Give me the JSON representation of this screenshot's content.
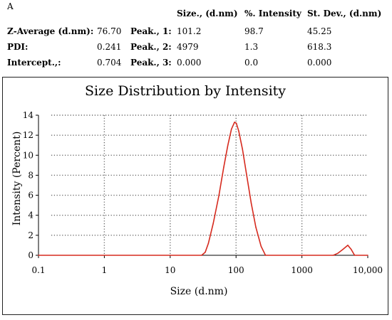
{
  "panel_label": "A",
  "summary": {
    "headers": [
      "Size., (d.nm)",
      "%. Intensity",
      "St. Dev., (d.nm)"
    ],
    "rows": [
      {
        "label": "Z-Average (d.nm):",
        "value": "76.70",
        "peak": "Peak., 1:",
        "size": "101.2",
        "intensity": "98.7",
        "stdev": "45.25"
      },
      {
        "label": "PDI:",
        "value": "0.241",
        "peak": "Peak., 2:",
        "size": "4979",
        "intensity": "1.3",
        "stdev": "618.3"
      },
      {
        "label": "Intercept.,:",
        "value": "0.704",
        "peak": "Peak., 3:",
        "size": "0.000",
        "intensity": "0.0",
        "stdev": "0.000"
      }
    ]
  },
  "chart_data": {
    "type": "line",
    "title": "Size Distribution by Intensity",
    "xlabel": "Size (d.nm)",
    "ylabel": "Intensity (Percent)",
    "xscale": "log",
    "xlim": [
      0.1,
      10000
    ],
    "ylim": [
      0,
      14
    ],
    "x_ticks": [
      0.1,
      1,
      10,
      100,
      1000,
      10000
    ],
    "x_tick_labels": [
      "0.1",
      "1",
      "10",
      "100",
      "1000",
      "10,000"
    ],
    "y_ticks": [
      0,
      2,
      4,
      6,
      8,
      10,
      12,
      14
    ],
    "y_tick_labels": [
      "0",
      "2",
      "4",
      "6",
      "8",
      "10",
      "12",
      "14"
    ],
    "grid": true,
    "line_color": "#d62a1e",
    "series": [
      {
        "x": [
          0.1,
          30,
          34,
          38,
          45,
          55,
          65,
          75,
          85,
          95,
          101,
          110,
          125,
          145,
          170,
          200,
          240,
          280,
          3000,
          3500,
          4200,
          4979,
          5600,
          6300,
          10000
        ],
        "values": [
          0,
          0,
          0.3,
          1.2,
          3.2,
          6.0,
          8.8,
          11.0,
          12.6,
          13.3,
          13.2,
          12.4,
          10.6,
          8.0,
          5.2,
          2.8,
          0.9,
          0,
          0,
          0.2,
          0.6,
          1.0,
          0.6,
          0,
          0
        ]
      }
    ]
  }
}
